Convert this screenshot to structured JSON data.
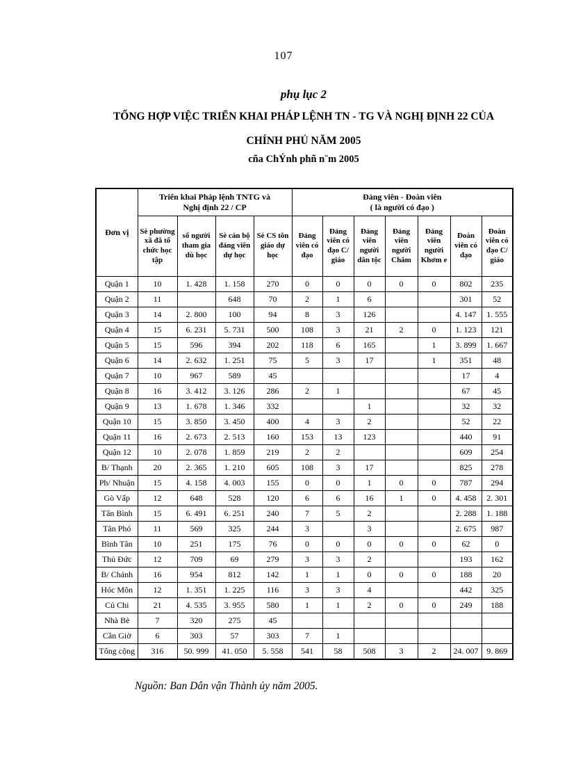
{
  "page": {
    "number": "107",
    "appendix_label": "phụ lục 2",
    "title_line1": "TỔNG HỢP VIỆC TRIỂN KHAI PHÁP LỆNH TN - TG VÀ NGHỊ ĐỊNH 22 CỦA",
    "title_line2": "CHÍNH PHỦ NĂM 2005",
    "title_line3": "cña ChÝnh phñ n¨m 2005",
    "source": "Nguồn: Ban Dân vận Thành ủy năm 2005."
  },
  "table": {
    "corner_header": "Đơn vị",
    "group1": {
      "line1": "Triển khai Pháp lệnh TNTG và",
      "line2": "Nghị định 22 / CP"
    },
    "group2": {
      "line1": "Đảng viên - Đoàn viên",
      "line2": "( là người có đạo )"
    },
    "columns": [
      "Sè phường xã đã tổ chức học tập",
      "số người tham gia dù học",
      "Sè cán bộ đảng viên dự học",
      "Sè CS tôn giáo dự học",
      "Đảng viên có đạo",
      "Đảng viên có đạo C/ giáo",
      "Đảng viên người dân tộc",
      "Đảng viên người Chăm",
      "Đảng viên người Khơm e",
      "Đoàn viên có đạo",
      "Đoàn viên có đạo C/ giáo"
    ],
    "rows": [
      {
        "name": "Quận 1",
        "values": [
          "10",
          "1. 428",
          "1. 158",
          "270",
          "0",
          "0",
          "0",
          "0",
          "0",
          "802",
          "235"
        ]
      },
      {
        "name": "Quận 2",
        "values": [
          "11",
          "",
          "648",
          "70",
          "2",
          "1",
          "6",
          "",
          "",
          "301",
          "52"
        ]
      },
      {
        "name": "Quận 3",
        "values": [
          "14",
          "2. 800",
          "100",
          "94",
          "8",
          "3",
          "126",
          "",
          "",
          "4. 147",
          "1. 555"
        ]
      },
      {
        "name": "Quận 4",
        "values": [
          "15",
          "6. 231",
          "5. 731",
          "500",
          "108",
          "3",
          "21",
          "2",
          "0",
          "1. 123",
          "121"
        ]
      },
      {
        "name": "Quận 5",
        "values": [
          "15",
          "596",
          "394",
          "202",
          "118",
          "6",
          "165",
          "",
          "1",
          "3. 899",
          "1. 667"
        ]
      },
      {
        "name": "Quận 6",
        "values": [
          "14",
          "2. 632",
          "1. 251",
          "75",
          "5",
          "3",
          "17",
          "",
          "1",
          "351",
          "48"
        ]
      },
      {
        "name": "Quận 7",
        "values": [
          "10",
          "967",
          "589",
          "45",
          "",
          "",
          "",
          "",
          "",
          "17",
          "4"
        ]
      },
      {
        "name": "Quận 8",
        "values": [
          "16",
          "3. 412",
          "3. 126",
          "286",
          "2",
          "1",
          "",
          "",
          "",
          "67",
          "45"
        ]
      },
      {
        "name": "Quận 9",
        "values": [
          "13",
          "1. 678",
          "1. 346",
          "332",
          "",
          "",
          "1",
          "",
          "",
          "32",
          "32"
        ]
      },
      {
        "name": "Quận 10",
        "values": [
          "15",
          "3. 850",
          "3. 450",
          "400",
          "4",
          "3",
          "2",
          "",
          "",
          "52",
          "22"
        ]
      },
      {
        "name": "Quận 11",
        "values": [
          "16",
          "2. 673",
          "2. 513",
          "160",
          "153",
          "13",
          "123",
          "",
          "",
          "440",
          "91"
        ]
      },
      {
        "name": "Quận 12",
        "values": [
          "10",
          "2. 078",
          "1. 859",
          "219",
          "2",
          "2",
          "",
          "",
          "",
          "609",
          "254"
        ]
      },
      {
        "name": "B/ Thạnh",
        "values": [
          "20",
          "2. 365",
          "1. 210",
          "605",
          "108",
          "3",
          "17",
          "",
          "",
          "825",
          "278"
        ]
      },
      {
        "name": "Ph/ Nhuận",
        "values": [
          "15",
          "4. 158",
          "4. 003",
          "155",
          "0",
          "0",
          "1",
          "0",
          "0",
          "787",
          "294"
        ]
      },
      {
        "name": "Gò Vấp",
        "values": [
          "12",
          "648",
          "528",
          "120",
          "6",
          "6",
          "16",
          "1",
          "0",
          "4. 458",
          "2. 301"
        ]
      },
      {
        "name": "Tân Bình",
        "values": [
          "15",
          "6. 491",
          "6. 251",
          "240",
          "7",
          "5",
          "2",
          "",
          "",
          "2. 288",
          "1. 188"
        ]
      },
      {
        "name": "Tân Phó",
        "values": [
          "11",
          "569",
          "325",
          "244",
          "3",
          "",
          "3",
          "",
          "",
          "2. 675",
          "987"
        ]
      },
      {
        "name": "Bình Tân",
        "values": [
          "10",
          "251",
          "175",
          "76",
          "0",
          "0",
          "0",
          "0",
          "0",
          "62",
          "0"
        ]
      },
      {
        "name": "Thủ Đức",
        "values": [
          "12",
          "709",
          "69",
          "279",
          "3",
          "3",
          "2",
          "",
          "",
          "193",
          "162"
        ]
      },
      {
        "name": "B/ Chánh",
        "values": [
          "16",
          "954",
          "812",
          "142",
          "1",
          "1",
          "0",
          "0",
          "0",
          "188",
          "20"
        ]
      },
      {
        "name": "Hóc Môn",
        "values": [
          "12",
          "1. 351",
          "1. 225",
          "116",
          "3",
          "3",
          "4",
          "",
          "",
          "442",
          "325"
        ]
      },
      {
        "name": "Củ Chi",
        "values": [
          "21",
          "4. 535",
          "3. 955",
          "580",
          "1",
          "1",
          "2",
          "0",
          "0",
          "249",
          "188"
        ]
      },
      {
        "name": "Nhà Bè",
        "values": [
          "7",
          "320",
          "275",
          "45",
          "",
          "",
          "",
          "",
          "",
          "",
          ""
        ]
      },
      {
        "name": "Cần Giờ",
        "values": [
          "6",
          "303",
          "57",
          "303",
          "7",
          "1",
          "",
          "",
          "",
          "",
          ""
        ]
      },
      {
        "name": "Tổng cộng",
        "values": [
          "316",
          "50. 999",
          "41. 050",
          "5. 558",
          "541",
          "58",
          "508",
          "3",
          "2",
          "24. 007",
          "9. 869"
        ]
      }
    ]
  }
}
